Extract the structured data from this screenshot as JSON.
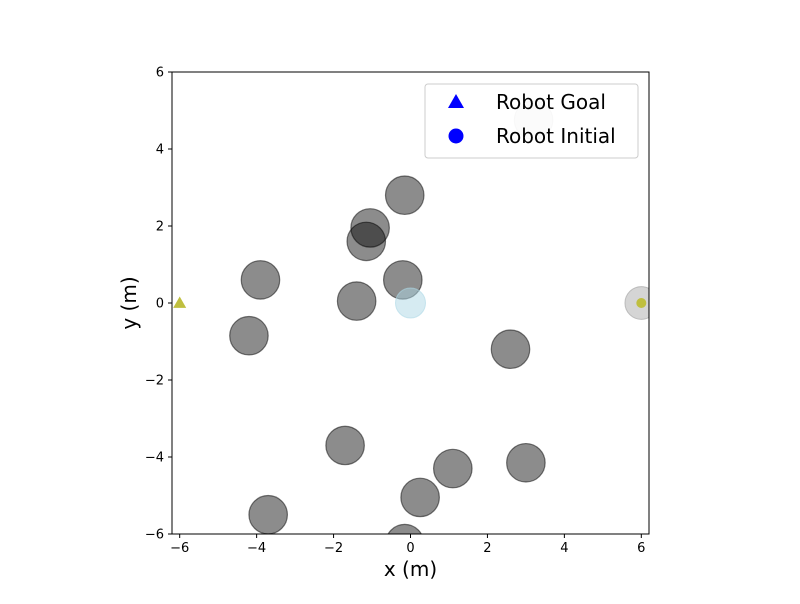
{
  "chart_data": {
    "type": "scatter",
    "title": "",
    "xlabel": "x (m)",
    "ylabel": "y (m)",
    "xlim": [
      -6.2,
      6.2
    ],
    "ylim": [
      -6,
      6
    ],
    "xticks": [
      -6,
      -4,
      -2,
      0,
      2,
      4,
      6
    ],
    "yticks": [
      -6,
      -4,
      -2,
      0,
      2,
      4,
      6
    ],
    "xtick_labels": [
      "−6",
      "−4",
      "−2",
      "0",
      "2",
      "4",
      "6"
    ],
    "ytick_labels": [
      "−6",
      "−4",
      "−2",
      "0",
      "2",
      "4",
      "6"
    ],
    "grid": false,
    "aspect": "equal",
    "legend": {
      "placement": "top-right",
      "entries": [
        {
          "label": "Robot Goal",
          "marker": "triangle",
          "color": "#0000ff"
        },
        {
          "label": "Robot Initial",
          "marker": "circle",
          "color": "#0000ff"
        }
      ]
    },
    "obstacle_radius_m": 0.5,
    "obstacles": [
      {
        "x": -3.9,
        "y": 0.6
      },
      {
        "x": -4.2,
        "y": -0.85
      },
      {
        "x": -1.4,
        "y": 0.05
      },
      {
        "x": -1.15,
        "y": 1.6
      },
      {
        "x": -1.05,
        "y": 1.95
      },
      {
        "x": -0.15,
        "y": 2.8
      },
      {
        "x": -0.2,
        "y": 0.6
      },
      {
        "x": 2.6,
        "y": -1.2
      },
      {
        "x": -1.7,
        "y": -3.7
      },
      {
        "x": 1.1,
        "y": -4.3
      },
      {
        "x": 3.0,
        "y": -4.15
      },
      {
        "x": 0.25,
        "y": -5.05
      },
      {
        "x": -3.7,
        "y": -5.5
      },
      {
        "x": -0.15,
        "y": -6.25
      }
    ],
    "faded_obstacles": [
      {
        "x": 3.2,
        "y": 4.75
      }
    ],
    "agents": [
      {
        "x": 0.0,
        "y": 0.0,
        "color": "#add8e6",
        "alpha": 0.5
      }
    ],
    "robot": {
      "goal": {
        "x": -6.0,
        "y": 0.0
      },
      "initial": {
        "x": 6.0,
        "y": 0.0
      },
      "body": {
        "x": 6.0,
        "y": 0.0
      },
      "marker_color": "#bfbf3f",
      "body_color": "#bfbfbf"
    },
    "colors": {
      "obstacle_fill": "#808080",
      "obstacle_edge": "#404040"
    }
  }
}
